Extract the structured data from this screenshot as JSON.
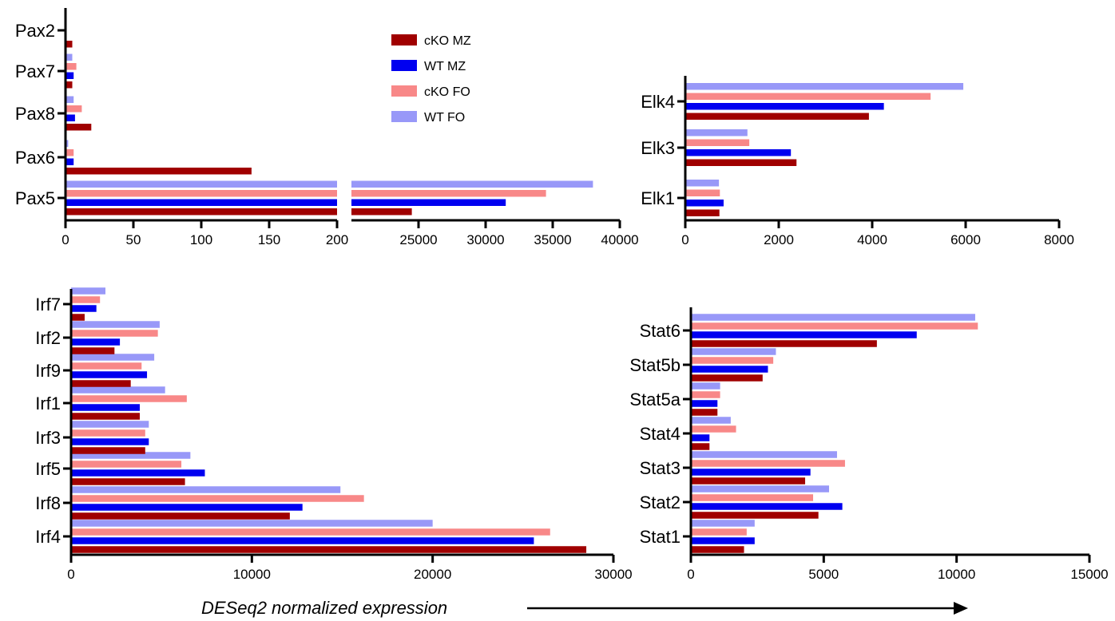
{
  "colors": {
    "cko_mz": "#a00000",
    "wt_mz": "#0000f0",
    "cko_fo": "#f88888",
    "wt_fo": "#9898f8"
  },
  "legend": {
    "items": [
      "cKO MZ",
      "WT MZ",
      "cKO FO",
      "WT FO"
    ],
    "placement": "top-center of Pax panel"
  },
  "footer": {
    "xlabel": "DESeq2 normalized expression"
  },
  "chart_data": [
    {
      "id": "pax",
      "type": "bar",
      "orientation": "horizontal",
      "categories": [
        "Pax5",
        "Pax6",
        "Pax8",
        "Pax7",
        "Pax2"
      ],
      "series": [
        {
          "name": "cKO MZ",
          "values": [
            24500,
            137,
            19,
            5,
            5
          ]
        },
        {
          "name": "WT MZ",
          "values": [
            31500,
            6,
            7,
            6,
            0
          ]
        },
        {
          "name": "cKO FO",
          "values": [
            34500,
            6,
            12,
            8,
            0
          ]
        },
        {
          "name": "WT FO",
          "values": [
            38000,
            2,
            6,
            5,
            0
          ]
        }
      ],
      "xaxis": {
        "broken": true,
        "segment1": {
          "range": [
            0,
            200
          ],
          "ticks": [
            "0",
            "50",
            "100",
            "150",
            "200"
          ]
        },
        "segment2": {
          "range": [
            20000,
            40000
          ],
          "ticks": [
            "25000",
            "30000",
            "35000",
            "40000"
          ]
        }
      }
    },
    {
      "id": "elk",
      "type": "bar",
      "orientation": "horizontal",
      "categories": [
        "Elk1",
        "Elk3",
        "Elk4"
      ],
      "series": [
        {
          "name": "cKO MZ",
          "values": [
            730,
            2380,
            3930
          ]
        },
        {
          "name": "WT MZ",
          "values": [
            820,
            2260,
            4250
          ]
        },
        {
          "name": "cKO FO",
          "values": [
            740,
            1370,
            5250
          ]
        },
        {
          "name": "WT FO",
          "values": [
            720,
            1330,
            5950
          ]
        }
      ],
      "xlim": [
        0,
        8000
      ],
      "xticks": [
        "0",
        "2000",
        "4000",
        "6000",
        "8000"
      ]
    },
    {
      "id": "irf",
      "type": "bar",
      "orientation": "horizontal",
      "categories": [
        "Irf4",
        "Irf8",
        "Irf5",
        "Irf3",
        "Irf1",
        "Irf9",
        "Irf2",
        "Irf7"
      ],
      "series": [
        {
          "name": "cKO MZ",
          "values": [
            28500,
            12100,
            6300,
            4100,
            3800,
            3300,
            2400,
            750
          ]
        },
        {
          "name": "WT MZ",
          "values": [
            25600,
            12800,
            7400,
            4300,
            3800,
            4200,
            2700,
            1400
          ]
        },
        {
          "name": "cKO FO",
          "values": [
            26500,
            16200,
            6100,
            4100,
            6400,
            3900,
            4800,
            1600
          ]
        },
        {
          "name": "WT FO",
          "values": [
            20000,
            14900,
            6600,
            4300,
            5200,
            4600,
            4900,
            1900
          ]
        }
      ],
      "xlim": [
        0,
        30000
      ],
      "xticks": [
        "0",
        "10000",
        "20000",
        "30000"
      ]
    },
    {
      "id": "stat",
      "type": "bar",
      "orientation": "horizontal",
      "categories": [
        "Stat1",
        "Stat2",
        "Stat3",
        "Stat4",
        "Stat5a",
        "Stat5b",
        "Stat6"
      ],
      "series": [
        {
          "name": "cKO MZ",
          "values": [
            2000,
            4800,
            4300,
            700,
            1000,
            2700,
            7000
          ]
        },
        {
          "name": "WT MZ",
          "values": [
            2400,
            5700,
            4500,
            700,
            1000,
            2900,
            8500
          ]
        },
        {
          "name": "cKO FO",
          "values": [
            2100,
            4600,
            5800,
            1700,
            1100,
            3100,
            10800
          ]
        },
        {
          "name": "WT FO",
          "values": [
            2400,
            5200,
            5500,
            1500,
            1100,
            3200,
            10700
          ]
        }
      ],
      "xlim": [
        0,
        15000
      ],
      "xticks": [
        "0",
        "5000",
        "10000",
        "15000"
      ]
    }
  ]
}
